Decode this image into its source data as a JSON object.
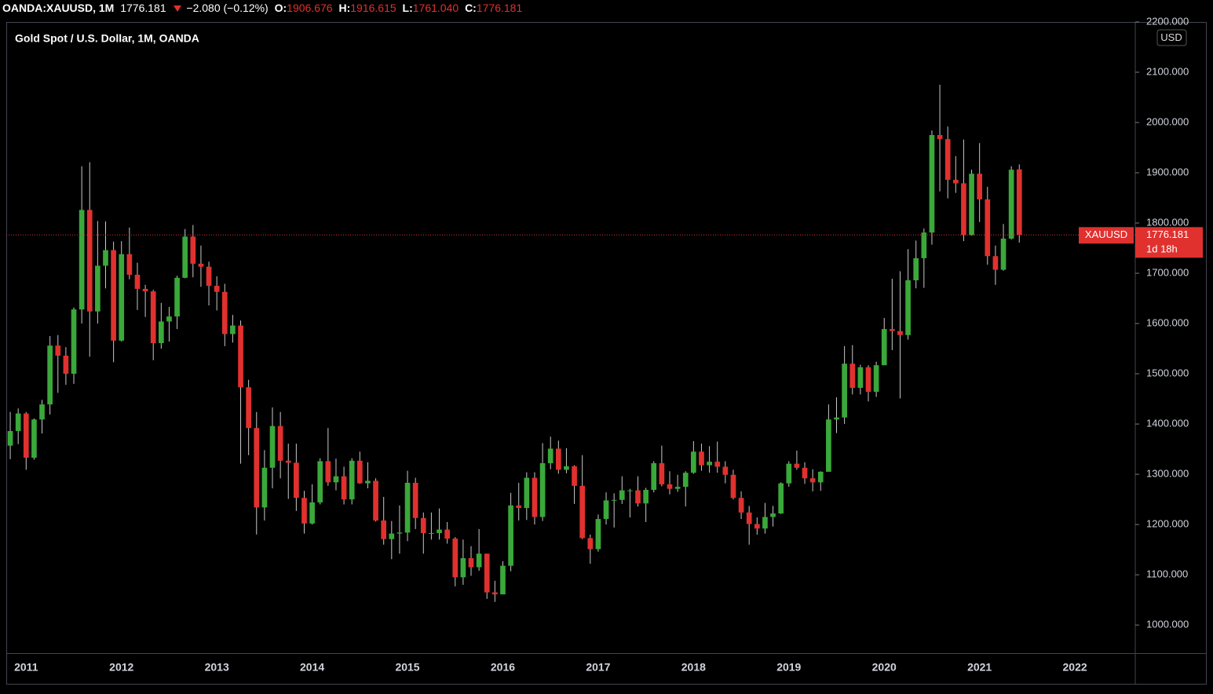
{
  "header": {
    "symbol": "OANDA:XAUUSD, 1M",
    "last": "1776.181",
    "change": "−2.080 (−0.12%)",
    "ohlc": [
      {
        "label": "O:",
        "value": "1906.676"
      },
      {
        "label": "H:",
        "value": "1916.615"
      },
      {
        "label": "L:",
        "value": "1761.040"
      },
      {
        "label": "C:",
        "value": "1776.181"
      }
    ]
  },
  "chart_data": {
    "type": "candlestick",
    "title": "Gold Spot / U.S. Dollar, 1M, OANDA",
    "currency": "USD",
    "symbol_label": "XAUUSD",
    "last_price_label": "1776.181",
    "countdown": "1d 18h",
    "up_color": "#3aa83a",
    "down_color": "#e0312f",
    "wick_color": "#c8c8c8",
    "price_line_color": "#e0312f",
    "ylim": [
      944,
      2200
    ],
    "yticks": [
      {
        "value": 1000,
        "label": "1000.000"
      },
      {
        "value": 1100,
        "label": "1100.000"
      },
      {
        "value": 1200,
        "label": "1200.000"
      },
      {
        "value": 1300,
        "label": "1300.000"
      },
      {
        "value": 1400,
        "label": "1400.000"
      },
      {
        "value": 1500,
        "label": "1500.000"
      },
      {
        "value": 1600,
        "label": "1600.000"
      },
      {
        "value": 1700,
        "label": "1700.000"
      },
      {
        "value": 1800,
        "label": "1800.000"
      },
      {
        "value": 1900,
        "label": "1900.000"
      },
      {
        "value": 2000,
        "label": "2000.000"
      },
      {
        "value": 2100,
        "label": "2100.000"
      },
      {
        "value": 2200,
        "label": "2200.000"
      }
    ],
    "categories": [
      null,
      null,
      "2011",
      null,
      null,
      null,
      null,
      null,
      null,
      null,
      null,
      null,
      null,
      null,
      "2012",
      null,
      null,
      null,
      null,
      null,
      null,
      null,
      null,
      null,
      null,
      null,
      "2013",
      null,
      null,
      null,
      null,
      null,
      null,
      null,
      null,
      null,
      null,
      null,
      "2014",
      null,
      null,
      null,
      null,
      null,
      null,
      null,
      null,
      null,
      null,
      null,
      "2015",
      null,
      null,
      null,
      null,
      null,
      null,
      null,
      null,
      null,
      null,
      null,
      "2016",
      null,
      null,
      null,
      null,
      null,
      null,
      null,
      null,
      null,
      null,
      null,
      "2017",
      null,
      null,
      null,
      null,
      null,
      null,
      null,
      null,
      null,
      null,
      null,
      "2018",
      null,
      null,
      null,
      null,
      null,
      null,
      null,
      null,
      null,
      null,
      null,
      "2019",
      null,
      null,
      null,
      null,
      null,
      null,
      null,
      null,
      null,
      null,
      null,
      "2020",
      null,
      null,
      null,
      null,
      null,
      null,
      null,
      null,
      null,
      null,
      null,
      "2021",
      null,
      null,
      null,
      null,
      null,
      null,
      null,
      null,
      null,
      null,
      null,
      "2022",
      null,
      null,
      null,
      null,
      null,
      null,
      null
    ],
    "open": [
      1357,
      1386,
      1421,
      1333,
      1409,
      1439,
      1556,
      1536,
      1500,
      1628,
      1826,
      1624,
      1715,
      1746,
      1566,
      1738,
      1697,
      1669,
      1664,
      1561,
      1604,
      1614,
      1691,
      1773,
      1719,
      1713,
      1675,
      1663,
      1579,
      1596,
      1473,
      1392,
      1234,
      1313,
      1396,
      1327,
      1323,
      1253,
      1202,
      1244,
      1326,
      1284,
      1296,
      1250,
      1327,
      1282,
      1287,
      1208,
      1171,
      1182,
      1184,
      1283,
      1213,
      1183,
      1183,
      1190,
      1172,
      1095,
      1133,
      1115,
      1142,
      1065,
      1061,
      1118,
      1238,
      1233,
      1293,
      1215,
      1322,
      1351,
      1309,
      1316,
      1277,
      1173,
      1151,
      1211,
      1248,
      1249,
      1268,
      1268,
      1242,
      1269,
      1322,
      1280,
      1271,
      1275,
      1303,
      1345,
      1318,
      1325,
      1315,
      1299,
      1253,
      1224,
      1201,
      1192,
      1215,
      1222,
      1282,
      1321,
      1313,
      1292,
      1284,
      1305,
      1409,
      1413,
      1520,
      1472,
      1513,
      1464,
      1517,
      1589,
      1585,
      1577,
      1686,
      1730,
      1781,
      1975,
      1967,
      1886,
      1879,
      1776,
      1898,
      1847,
      1734,
      1707,
      1769,
      1906.676,
      null,
      null,
      null,
      null,
      null,
      null,
      null,
      null,
      null,
      null,
      null,
      null,
      null,
      null
    ],
    "high": [
      1424,
      1431,
      1424,
      1411,
      1448,
      1575,
      1577,
      1553,
      1632,
      1913,
      1921,
      1804,
      1803,
      1763,
      1764,
      1791,
      1721,
      1677,
      1667,
      1641,
      1633,
      1695,
      1788,
      1796,
      1755,
      1723,
      1694,
      1679,
      1617,
      1606,
      1488,
      1424,
      1348,
      1433,
      1424,
      1361,
      1361,
      1267,
      1280,
      1332,
      1392,
      1331,
      1315,
      1332,
      1345,
      1324,
      1292,
      1255,
      1207,
      1238,
      1307,
      1293,
      1224,
      1224,
      1232,
      1205,
      1175,
      1170,
      1157,
      1191,
      1142,
      1088,
      1127,
      1263,
      1283,
      1304,
      1304,
      1362,
      1375,
      1367,
      1352,
      1318,
      1338,
      1180,
      1220,
      1264,
      1262,
      1296,
      1271,
      1296,
      1273,
      1326,
      1357,
      1306,
      1299,
      1306,
      1366,
      1361,
      1356,
      1365,
      1326,
      1309,
      1266,
      1237,
      1214,
      1243,
      1237,
      1284,
      1326,
      1347,
      1324,
      1310,
      1306,
      1439,
      1453,
      1555,
      1557,
      1518,
      1517,
      1524,
      1611,
      1689,
      1704,
      1748,
      1765,
      1789,
      1984,
      2075,
      1992,
      1933,
      1966,
      1906,
      1959,
      1872,
      1755,
      1798,
      1913,
      1916.615,
      null,
      null,
      null,
      null,
      null,
      null,
      null,
      null,
      null,
      null,
      null,
      null,
      null,
      null
    ],
    "low": [
      1330,
      1360,
      1309,
      1329,
      1381,
      1419,
      1462,
      1478,
      1480,
      1600,
      1534,
      1600,
      1670,
      1523,
      1564,
      1688,
      1627,
      1613,
      1527,
      1550,
      1564,
      1589,
      1690,
      1692,
      1673,
      1636,
      1626,
      1555,
      1562,
      1321,
      1338,
      1180,
      1208,
      1272,
      1292,
      1251,
      1227,
      1182,
      1200,
      1240,
      1277,
      1268,
      1240,
      1240,
      1281,
      1272,
      1206,
      1160,
      1131,
      1142,
      1167,
      1191,
      1142,
      1170,
      1170,
      1162,
      1077,
      1080,
      1098,
      1108,
      1052,
      1046,
      1061,
      1107,
      1208,
      1209,
      1200,
      1207,
      1310,
      1301,
      1302,
      1241,
      1171,
      1122,
      1146,
      1200,
      1194,
      1241,
      1214,
      1236,
      1205,
      1264,
      1276,
      1260,
      1265,
      1236,
      1301,
      1307,
      1303,
      1303,
      1282,
      1250,
      1211,
      1160,
      1180,
      1182,
      1196,
      1221,
      1275,
      1309,
      1281,
      1266,
      1267,
      1305,
      1382,
      1400,
      1459,
      1459,
      1445,
      1454,
      1517,
      1547,
      1451,
      1568,
      1670,
      1671,
      1757,
      1863,
      1849,
      1860,
      1764,
      1775,
      1802,
      1717,
      1677,
      1705,
      1767,
      1761.04,
      null,
      null,
      null,
      null,
      null,
      null,
      null,
      null,
      null,
      null,
      null,
      null,
      null,
      null
    ],
    "close": [
      1386,
      1421,
      1333,
      1409,
      1439,
      1556,
      1536,
      1500,
      1628,
      1826,
      1624,
      1715,
      1746,
      1566,
      1738,
      1697,
      1669,
      1664,
      1561,
      1604,
      1614,
      1691,
      1773,
      1719,
      1713,
      1675,
      1663,
      1579,
      1596,
      1473,
      1392,
      1234,
      1313,
      1396,
      1327,
      1323,
      1253,
      1202,
      1244,
      1326,
      1284,
      1296,
      1250,
      1327,
      1282,
      1287,
      1208,
      1171,
      1182,
      1184,
      1283,
      1213,
      1183,
      1183,
      1190,
      1172,
      1095,
      1133,
      1115,
      1142,
      1065,
      1061,
      1118,
      1238,
      1233,
      1293,
      1215,
      1322,
      1351,
      1309,
      1316,
      1277,
      1173,
      1151,
      1211,
      1248,
      1249,
      1268,
      1268,
      1242,
      1269,
      1322,
      1280,
      1271,
      1275,
      1303,
      1345,
      1318,
      1325,
      1315,
      1299,
      1253,
      1224,
      1201,
      1192,
      1215,
      1222,
      1282,
      1321,
      1313,
      1292,
      1284,
      1305,
      1409,
      1413,
      1520,
      1472,
      1513,
      1464,
      1517,
      1589,
      1585,
      1577,
      1686,
      1730,
      1781,
      1975,
      1967,
      1886,
      1879,
      1776,
      1898,
      1847,
      1734,
      1707,
      1769,
      1906,
      1776.181,
      null,
      null,
      null,
      null,
      null,
      null,
      null,
      null,
      null,
      null,
      null,
      null,
      null,
      null
    ]
  }
}
